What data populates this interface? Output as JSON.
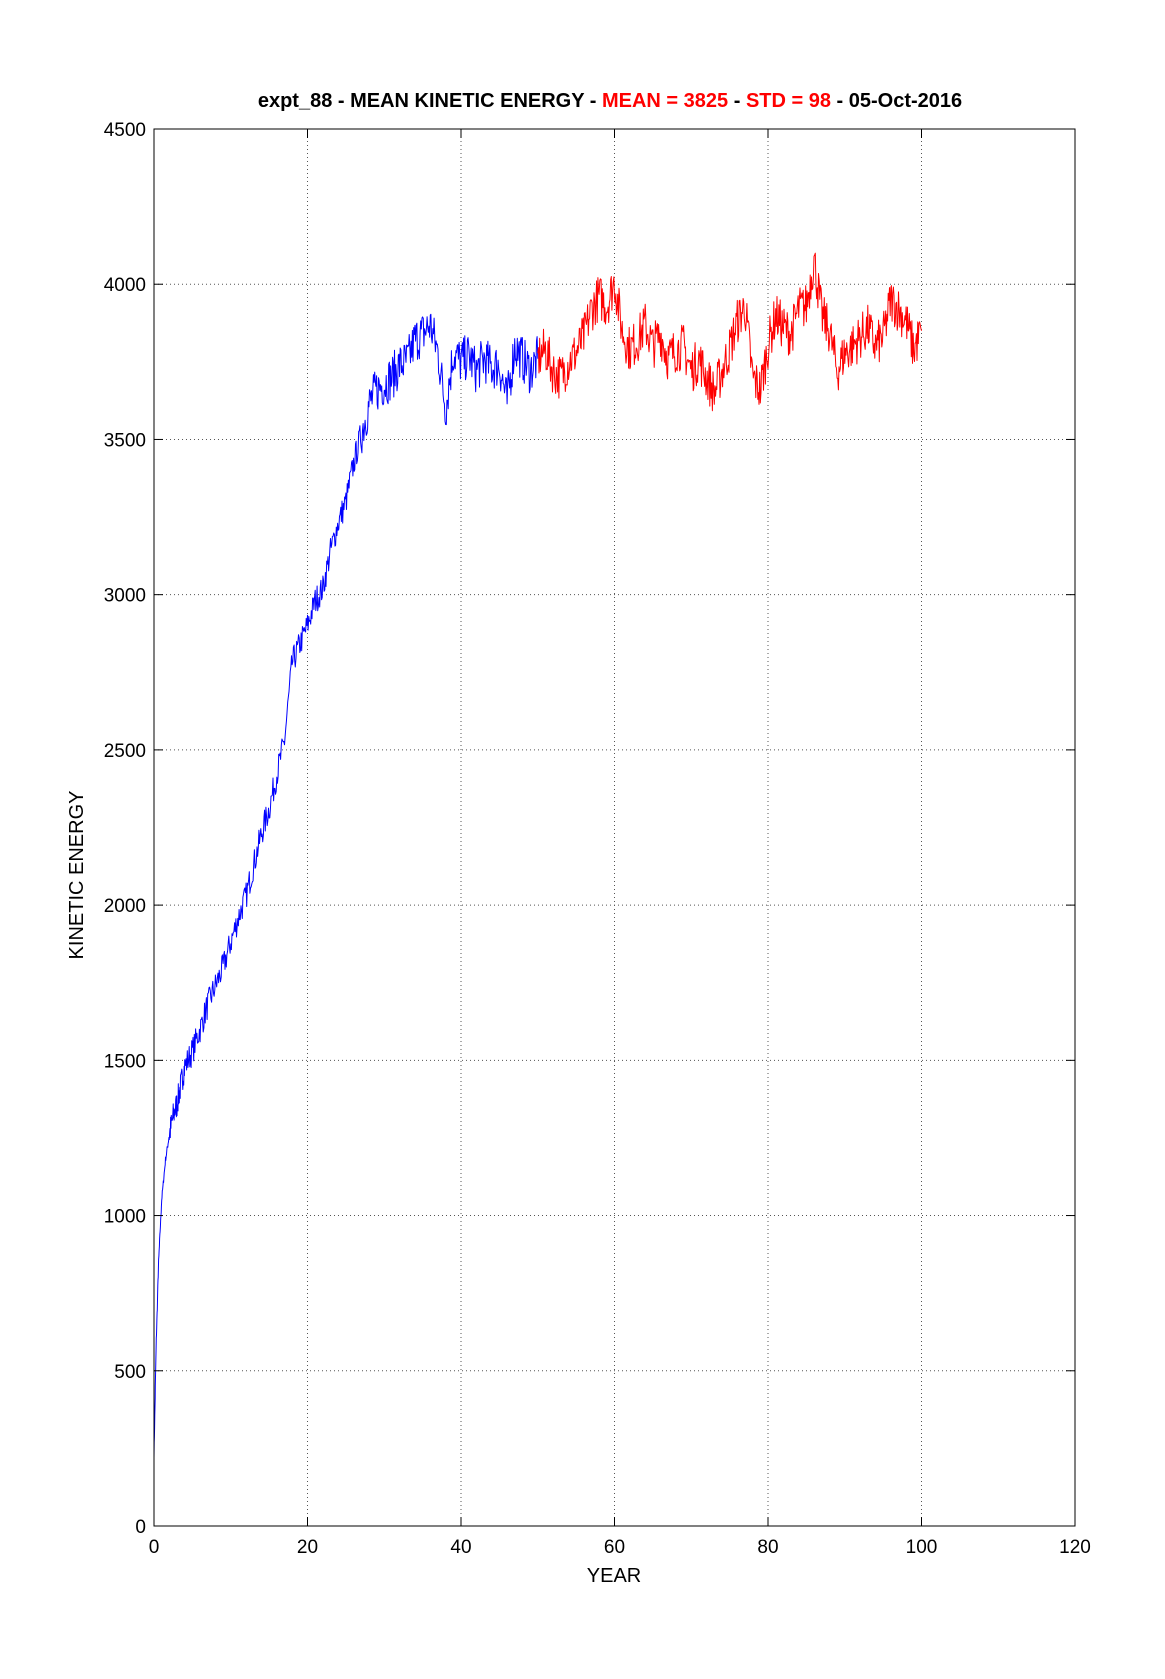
{
  "chart_data": {
    "type": "line",
    "title": {
      "prefix": "expt_88 - MEAN KINETIC ENERGY - ",
      "mean_text": "MEAN =  3825",
      "sep1": " - ",
      "std_text": "STD =   98",
      "suffix": " - 05-Oct-2016"
    },
    "xlabel": "YEAR",
    "ylabel": "KINETIC ENERGY",
    "xlim": [
      0,
      120
    ],
    "ylim": [
      0,
      4500
    ],
    "xticks": [
      "0",
      "20",
      "40",
      "60",
      "80",
      "100",
      "120"
    ],
    "yticks": [
      "0",
      "500",
      "1000",
      "1500",
      "2000",
      "2500",
      "3000",
      "3500",
      "4000",
      "4500"
    ],
    "grid": true,
    "series": [
      {
        "color": "#0000ff",
        "points": [
          [
            0,
            230
          ],
          [
            0.3,
            600
          ],
          [
            0.6,
            850
          ],
          [
            1,
            1050
          ],
          [
            1.5,
            1180
          ],
          [
            2,
            1260
          ],
          [
            2.5,
            1320
          ],
          [
            3,
            1360
          ],
          [
            3.5,
            1420
          ],
          [
            4,
            1480
          ],
          [
            5,
            1530
          ],
          [
            6,
            1600
          ],
          [
            7,
            1680
          ],
          [
            8,
            1740
          ],
          [
            9,
            1800
          ],
          [
            10,
            1880
          ],
          [
            11,
            1960
          ],
          [
            12,
            2030
          ],
          [
            13,
            2130
          ],
          [
            14,
            2230
          ],
          [
            15,
            2310
          ],
          [
            16,
            2420
          ],
          [
            17,
            2530
          ],
          [
            18,
            2780
          ],
          [
            19,
            2840
          ],
          [
            20,
            2900
          ],
          [
            21,
            2980
          ],
          [
            22,
            3020
          ],
          [
            23,
            3140
          ],
          [
            24,
            3230
          ],
          [
            25,
            3300
          ],
          [
            26,
            3420
          ],
          [
            27,
            3520
          ],
          [
            28,
            3610
          ],
          [
            29,
            3660
          ],
          [
            30,
            3680
          ],
          [
            31,
            3700
          ],
          [
            32,
            3740
          ],
          [
            33,
            3750
          ],
          [
            34,
            3820
          ],
          [
            35,
            3840
          ],
          [
            36,
            3870
          ],
          [
            37,
            3780
          ],
          [
            38,
            3600
          ],
          [
            39,
            3780
          ],
          [
            40,
            3750
          ],
          [
            41,
            3770
          ],
          [
            42,
            3720
          ],
          [
            43,
            3760
          ],
          [
            44,
            3730
          ],
          [
            45,
            3740
          ],
          [
            46,
            3620
          ],
          [
            47,
            3800
          ],
          [
            48,
            3760
          ],
          [
            49,
            3720
          ],
          [
            50,
            3760
          ]
        ]
      },
      {
        "color": "#ff0000",
        "points": [
          [
            50,
            3760
          ],
          [
            51,
            3790
          ],
          [
            52,
            3720
          ],
          [
            53,
            3700
          ],
          [
            54,
            3750
          ],
          [
            55,
            3780
          ],
          [
            56,
            3830
          ],
          [
            57,
            3920
          ],
          [
            58,
            3960
          ],
          [
            59,
            3930
          ],
          [
            60,
            4010
          ],
          [
            61,
            3850
          ],
          [
            62,
            3790
          ],
          [
            63,
            3820
          ],
          [
            64,
            3870
          ],
          [
            65,
            3800
          ],
          [
            66,
            3840
          ],
          [
            67,
            3760
          ],
          [
            68,
            3790
          ],
          [
            69,
            3800
          ],
          [
            70,
            3720
          ],
          [
            71,
            3760
          ],
          [
            72,
            3700
          ],
          [
            73,
            3650
          ],
          [
            74,
            3720
          ],
          [
            75,
            3790
          ],
          [
            76,
            3880
          ],
          [
            77,
            3930
          ],
          [
            78,
            3700
          ],
          [
            79,
            3660
          ],
          [
            80,
            3800
          ],
          [
            81,
            3900
          ],
          [
            82,
            3860
          ],
          [
            83,
            3840
          ],
          [
            84,
            3920
          ],
          [
            85,
            3930
          ],
          [
            86,
            4080
          ],
          [
            87,
            3900
          ],
          [
            88,
            3850
          ],
          [
            89,
            3720
          ],
          [
            90,
            3780
          ],
          [
            91,
            3800
          ],
          [
            92,
            3830
          ],
          [
            93,
            3860
          ],
          [
            94,
            3800
          ],
          [
            95,
            3830
          ],
          [
            96,
            3950
          ],
          [
            97,
            3920
          ],
          [
            98,
            3880
          ],
          [
            99,
            3790
          ],
          [
            100,
            3850
          ]
        ]
      }
    ]
  },
  "colors": {
    "highlight": "#ff0000",
    "grid": "#555555",
    "axis": "#000000"
  }
}
